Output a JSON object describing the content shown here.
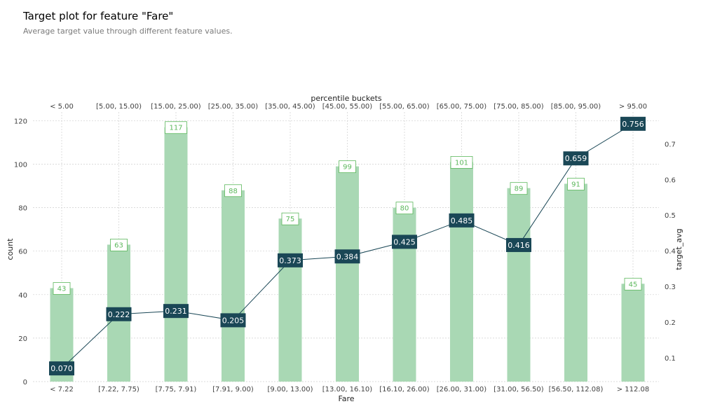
{
  "title": "Target plot for feature \"Fare\"",
  "subtitle": "Average target value through different feature values.",
  "chart_data": {
    "type": "bar",
    "categories": [
      "< 7.22",
      "[7.22, 7.75)",
      "[7.75, 7.91)",
      "[7.91, 9.00)",
      "[9.00, 13.00)",
      "[13.00, 16.10)",
      "[16.10, 26.00)",
      "[26.00, 31.00)",
      "[31.00, 56.50)",
      "[56.50, 112.08)",
      "> 112.08"
    ],
    "percentile_buckets": [
      "< 5.00",
      "[5.00, 15.00)",
      "[15.00, 25.00)",
      "[25.00, 35.00)",
      "[35.00, 45.00)",
      "[45.00, 55.00)",
      "[55.00, 65.00)",
      "[65.00, 75.00)",
      "[75.00, 85.00)",
      "[85.00, 95.00)",
      "> 95.00"
    ],
    "series": [
      {
        "name": "count",
        "type": "bar",
        "axis": "left",
        "values": [
          43,
          63,
          117,
          88,
          75,
          99,
          80,
          101,
          89,
          91,
          45
        ],
        "labels": [
          "43",
          "63",
          "117",
          "88",
          "75",
          "99",
          "80",
          "101",
          "89",
          "91",
          "45"
        ]
      },
      {
        "name": "target_avg",
        "type": "line",
        "axis": "right",
        "values": [
          0.07,
          0.222,
          0.231,
          0.205,
          0.373,
          0.384,
          0.425,
          0.485,
          0.416,
          0.659,
          0.756
        ],
        "labels": [
          "0.070",
          "0.222",
          "0.231",
          "0.205",
          "0.373",
          "0.384",
          "0.425",
          "0.485",
          "0.416",
          "0.659",
          "0.756"
        ]
      }
    ],
    "xlabel": "Fare",
    "top_xlabel": "percentile buckets",
    "ylabel": "count",
    "y2label": "target_avg",
    "ylim": [
      0,
      124
    ],
    "y2lim": [
      0.033,
      0.789
    ],
    "yticks": [
      "0",
      "20",
      "40",
      "60",
      "80",
      "100",
      "120"
    ],
    "y2ticks": [
      "0.1",
      "0.2",
      "0.3",
      "0.4",
      "0.5",
      "0.6",
      "0.7"
    ],
    "grid": true,
    "colors": {
      "bar": "#a9d8b4",
      "bar_label": "#5cb85c",
      "line": "#1a4756",
      "box": "#1a4756"
    }
  }
}
